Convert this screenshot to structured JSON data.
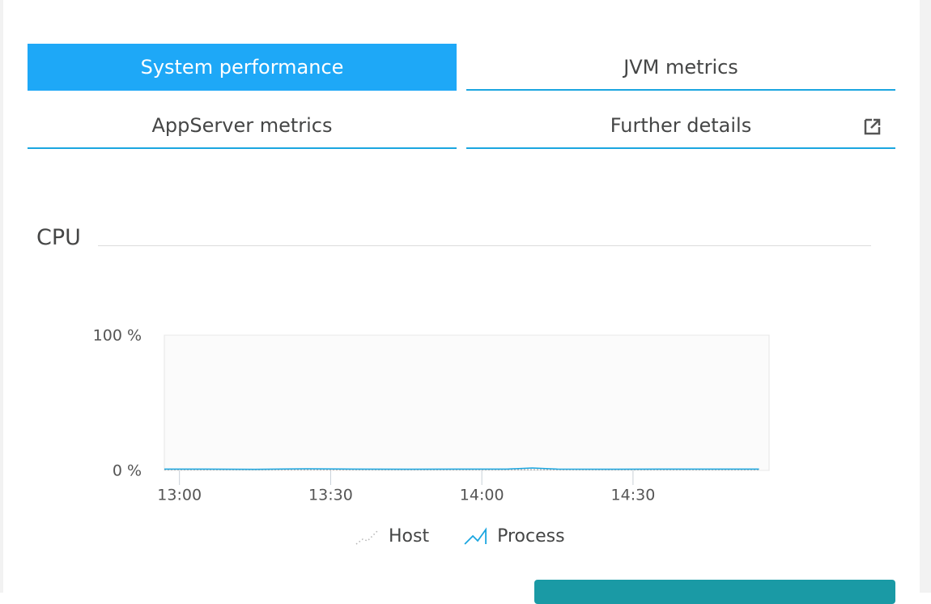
{
  "tabs": [
    {
      "label": "System performance",
      "active": true
    },
    {
      "label": "JVM metrics"
    },
    {
      "label": "AppServer metrics"
    },
    {
      "label": "Further details"
    }
  ],
  "section_title": "CPU",
  "chart_data": {
    "type": "line",
    "x": [
      "12:57",
      "13:05",
      "13:15",
      "13:25",
      "13:35",
      "13:45",
      "13:55",
      "14:05",
      "14:10",
      "14:15",
      "14:25",
      "14:35",
      "14:45",
      "14:55"
    ],
    "xlim": [
      "12:57",
      "14:57"
    ],
    "xticks": [
      "13:00",
      "13:30",
      "14:00",
      "14:30"
    ],
    "ylim": [
      0,
      100
    ],
    "yticks": [
      {
        "value": 0,
        "label": "0 %"
      },
      {
        "value": 100,
        "label": "100 %"
      }
    ],
    "series": [
      {
        "name": "Host",
        "color": "#b4b4b4",
        "values": [
          0.5,
          0.5,
          0.5,
          0.5,
          0.5,
          0.5,
          0.5,
          0.5,
          0.5,
          0.5,
          0.5,
          0.5,
          0.5,
          0.5
        ]
      },
      {
        "name": "Process",
        "color": "#1ba6e0",
        "values": [
          1,
          1,
          0.8,
          1.2,
          1,
          0.9,
          1,
          1,
          1.8,
          1,
          0.9,
          1,
          1,
          1
        ]
      }
    ]
  }
}
